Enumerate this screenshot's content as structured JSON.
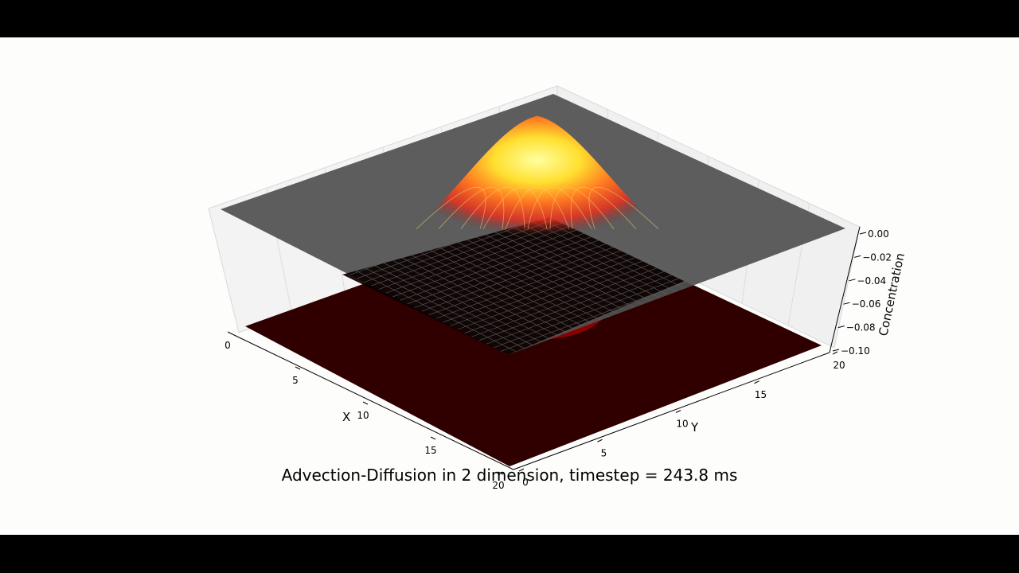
{
  "caption": "Advection-Diffusion in 2 dimension, timestep = 243.8 ms",
  "chart_data": {
    "type": "surface3d",
    "title": "",
    "xlabel": "X",
    "ylabel": "Y",
    "zlabel": "Concentration",
    "x_ticks": [
      "0",
      "5",
      "10",
      "15",
      "20"
    ],
    "y_ticks": [
      "0",
      "5",
      "10",
      "15",
      "20"
    ],
    "z_ticks": [
      "0.00",
      "−0.02",
      "−0.04",
      "−0.06",
      "−0.08",
      "−0.10"
    ],
    "xlim": [
      0,
      20
    ],
    "ylim": [
      0,
      20
    ],
    "zlim": [
      -0.1,
      0.0
    ],
    "colormap": "hot",
    "surface": {
      "kind": "gaussian-pulse",
      "center_x": 7.5,
      "center_y": 7.5,
      "peak_above_baseline": 0.04,
      "baseline": 0.0
    },
    "contour_projection_z": -0.1,
    "grid": true,
    "colors": {
      "plane": "#505050",
      "floor": "#300000",
      "peak": "#ffff80"
    }
  }
}
